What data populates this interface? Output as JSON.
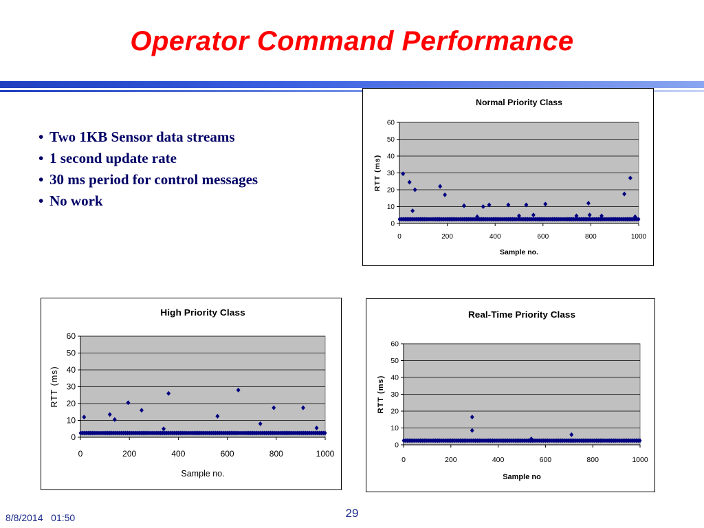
{
  "slide": {
    "title": "Operator Command Performance",
    "bullets": [
      "Two 1KB Sensor data streams",
      "1 second update rate",
      "30 ms period for control messages",
      "No work"
    ],
    "footer_date": "8/8/2014   01:50",
    "page_number": "29"
  },
  "colors": {
    "title": "#ff0000",
    "bullet_text": "#000066",
    "plot_area": "#c0c0c0",
    "marker": "#000080",
    "footer": "#1a2a8a"
  },
  "chart_data": [
    {
      "type": "scatter",
      "title": "Normal Priority Class",
      "xlabel": "Sample no.",
      "ylabel": "RTT (ms)",
      "xlim": [
        0,
        1000
      ],
      "ylim": [
        0,
        60
      ],
      "xticks": [
        "0",
        "200",
        "400",
        "600",
        "800",
        "1000"
      ],
      "yticks": [
        "0",
        "10",
        "20",
        "30",
        "40",
        "50",
        "60"
      ],
      "grid": true,
      "baseline": {
        "y": 2.5,
        "x_range": [
          0,
          1000
        ],
        "note": "dense band of samples"
      },
      "points": [
        {
          "x": 15,
          "y": 29.5
        },
        {
          "x": 42,
          "y": 24.5
        },
        {
          "x": 55,
          "y": 7.5
        },
        {
          "x": 65,
          "y": 20
        },
        {
          "x": 170,
          "y": 22
        },
        {
          "x": 190,
          "y": 17
        },
        {
          "x": 270,
          "y": 10.5
        },
        {
          "x": 325,
          "y": 4
        },
        {
          "x": 350,
          "y": 10
        },
        {
          "x": 375,
          "y": 11
        },
        {
          "x": 455,
          "y": 11
        },
        {
          "x": 500,
          "y": 4.5
        },
        {
          "x": 530,
          "y": 11
        },
        {
          "x": 560,
          "y": 5
        },
        {
          "x": 610,
          "y": 11.5
        },
        {
          "x": 740,
          "y": 4.5
        },
        {
          "x": 790,
          "y": 12
        },
        {
          "x": 795,
          "y": 5
        },
        {
          "x": 845,
          "y": 4.5
        },
        {
          "x": 940,
          "y": 17.5
        },
        {
          "x": 965,
          "y": 27
        },
        {
          "x": 985,
          "y": 4
        }
      ]
    },
    {
      "type": "scatter",
      "title": "High Priority Class",
      "xlabel": "Sample no.",
      "ylabel": "RTT (ms)",
      "xlim": [
        0,
        1000
      ],
      "ylim": [
        0,
        60
      ],
      "xticks": [
        "0",
        "200",
        "400",
        "600",
        "800",
        "1000"
      ],
      "yticks": [
        "0",
        "10",
        "20",
        "30",
        "40",
        "50",
        "60"
      ],
      "grid": true,
      "baseline": {
        "y": 2.5,
        "x_range": [
          0,
          1000
        ],
        "note": "dense band of samples"
      },
      "points": [
        {
          "x": 15,
          "y": 12
        },
        {
          "x": 120,
          "y": 13.5
        },
        {
          "x": 140,
          "y": 10.5
        },
        {
          "x": 195,
          "y": 20.5
        },
        {
          "x": 250,
          "y": 16
        },
        {
          "x": 340,
          "y": 5
        },
        {
          "x": 360,
          "y": 26
        },
        {
          "x": 560,
          "y": 12.5
        },
        {
          "x": 645,
          "y": 28
        },
        {
          "x": 735,
          "y": 8
        },
        {
          "x": 790,
          "y": 17.5
        },
        {
          "x": 910,
          "y": 17.5
        },
        {
          "x": 965,
          "y": 5.5
        }
      ]
    },
    {
      "type": "scatter",
      "title": "Real-Time Priority Class",
      "xlabel": "Sample no",
      "ylabel": "RTT (ms)",
      "xlim": [
        0,
        1000
      ],
      "ylim": [
        0,
        60
      ],
      "xticks": [
        "0",
        "200",
        "400",
        "600",
        "800",
        "1000"
      ],
      "yticks": [
        "0",
        "10",
        "20",
        "30",
        "40",
        "50",
        "60"
      ],
      "grid": true,
      "baseline": {
        "y": 2.5,
        "x_range": [
          0,
          1000
        ],
        "note": "dense band of samples"
      },
      "points": [
        {
          "x": 290,
          "y": 16.5
        },
        {
          "x": 290,
          "y": 8.5
        },
        {
          "x": 710,
          "y": 6
        },
        {
          "x": 540,
          "y": 3.5
        }
      ]
    }
  ]
}
